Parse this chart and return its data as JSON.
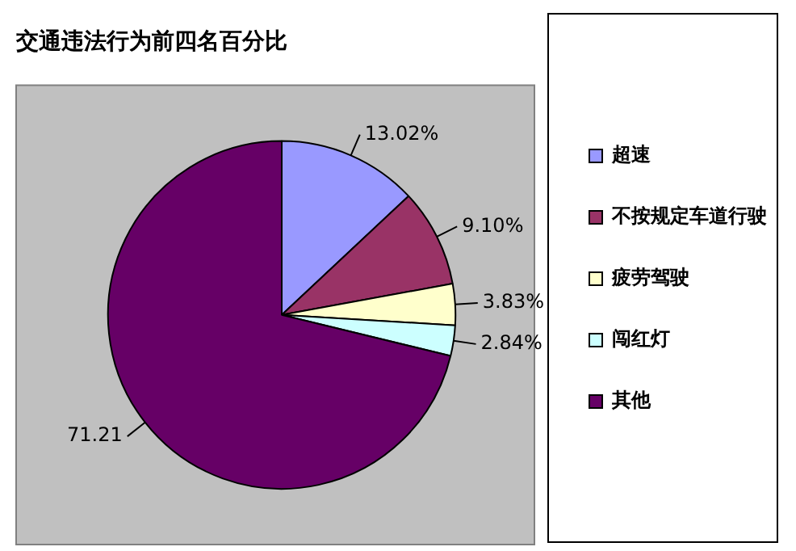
{
  "chart_data": {
    "type": "pie",
    "title": "交通违法行为前四名百分比",
    "categories": [
      "超速",
      "不按规定车道行驶",
      "疲劳驾驶",
      "闯红灯",
      "其他"
    ],
    "values": [
      13.02,
      9.1,
      3.83,
      2.84,
      71.21
    ],
    "value_labels": [
      "13.02%",
      "9.10%",
      "3.83%",
      "2.84%",
      "71.21"
    ],
    "colors": [
      "#9999ff",
      "#993366",
      "#ffffcc",
      "#ccffff",
      "#660066"
    ],
    "legend": "right"
  }
}
